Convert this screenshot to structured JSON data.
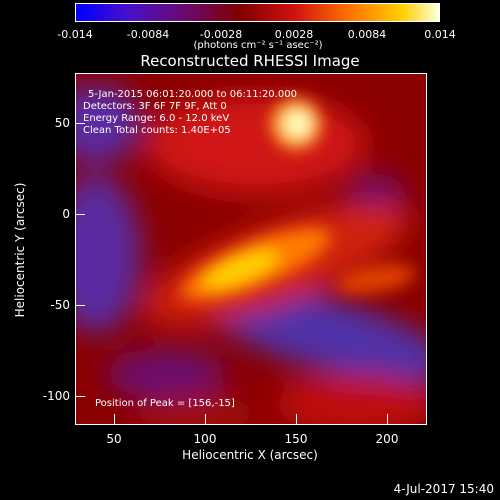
{
  "colorbar": {
    "ticks": [
      "-0.014",
      "-0.0084",
      "-0.0028",
      "0.0028",
      "0.0084",
      "0.014"
    ],
    "units": "(photons cm⁻² s⁻¹ asec⁻²)",
    "colors": [
      "#0000ff",
      "#6a0dad",
      "#8b0000",
      "#ff4500",
      "#ffa500",
      "#ffffe0"
    ]
  },
  "title": "Reconstructed RHESSI Image",
  "info": {
    "line1": "5-Jan-2015 06:01:20.000 to 06:11:20.000",
    "line2": "Detectors: 3F 6F 7F 9F, Att 0",
    "line3": "Energy Range: 6.0 - 12.0 keV",
    "line4": "Clean     Total counts: 1.40E+05",
    "peak": "Position of Peak = [156,-15]"
  },
  "axes": {
    "xlabel": "Heliocentric X (arcsec)",
    "ylabel": "Heliocentric Y (arcsec)",
    "xticks": [
      "50",
      "100",
      "150",
      "200"
    ],
    "yticks": [
      "50",
      "0",
      "-50",
      "-100"
    ]
  },
  "footer": "4-Jul-2017 15:40",
  "image_features": [
    {
      "kind": "bright-source",
      "x": 150,
      "y": 52
    },
    {
      "kind": "bright-ridge",
      "x": 125,
      "y": -30
    }
  ]
}
